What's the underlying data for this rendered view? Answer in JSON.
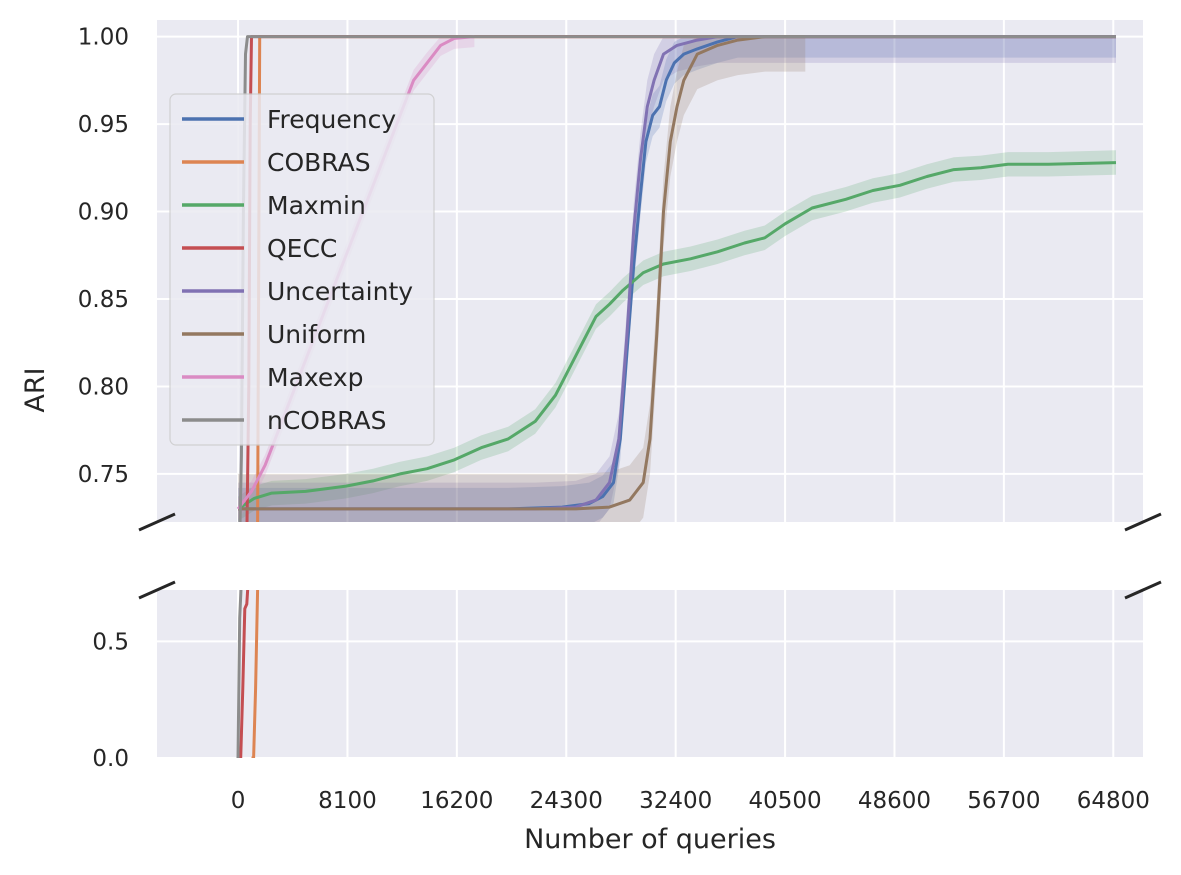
{
  "chart_data": {
    "type": "line",
    "xlabel": "Number of queries",
    "ylabel": "ARI",
    "xlim": [
      -6000,
      67000
    ],
    "x_ticks": [
      0,
      8100,
      16200,
      24300,
      32400,
      40500,
      48600,
      56700,
      64800
    ],
    "x_tick_labels": [
      "0",
      "8100",
      "16200",
      "24300",
      "32400",
      "40500",
      "48600",
      "56700",
      "64800"
    ],
    "broken_axis": true,
    "upper_ylim": [
      0.7225,
      1.0095
    ],
    "upper_y_ticks": [
      0.75,
      0.8,
      0.85,
      0.9,
      0.95,
      1.0
    ],
    "upper_y_tick_labels": [
      "0.75",
      "0.80",
      "0.85",
      "0.90",
      "0.95",
      "1.00"
    ],
    "lower_ylim": [
      0.0,
      0.72
    ],
    "lower_y_ticks": [
      0.0,
      0.5
    ],
    "lower_y_tick_labels": [
      "0.0",
      "0.5"
    ],
    "grid": true,
    "legend_position": "upper-left",
    "series": [
      {
        "name": "Frequency",
        "color": "#4c72b0",
        "x": [
          0,
          20000,
          24000,
          26000,
          27000,
          27800,
          28300,
          28800,
          29300,
          29800,
          30200,
          30700,
          31200,
          31700,
          32300,
          33000,
          34000,
          35500,
          37000,
          65000
        ],
        "y": [
          0.73,
          0.73,
          0.731,
          0.733,
          0.737,
          0.745,
          0.77,
          0.82,
          0.87,
          0.91,
          0.94,
          0.955,
          0.96,
          0.975,
          0.985,
          0.99,
          0.993,
          0.997,
          1.0,
          1.0
        ],
        "band": 0.012
      },
      {
        "name": "COBRAS",
        "color": "#dd8452",
        "x": [
          1000,
          1150,
          1300,
          1450,
          1600,
          65000
        ],
        "y": [
          0.0,
          0.0,
          0.3,
          0.72,
          1.0,
          1.0
        ],
        "band": 0
      },
      {
        "name": "Maxmin",
        "color": "#55a868",
        "x": [
          0,
          1200,
          2500,
          5000,
          8000,
          10000,
          12000,
          14000,
          16000,
          18000,
          20000,
          22000,
          23500,
          24500,
          25500,
          26500,
          27500,
          28500,
          30000,
          31500,
          33500,
          35500,
          37500,
          39000,
          40500,
          42500,
          45000,
          47000,
          49000,
          51000,
          53000,
          55000,
          57000,
          60000,
          65000
        ],
        "y": [
          0.73,
          0.736,
          0.739,
          0.74,
          0.743,
          0.746,
          0.75,
          0.753,
          0.758,
          0.765,
          0.77,
          0.78,
          0.795,
          0.81,
          0.825,
          0.84,
          0.847,
          0.855,
          0.865,
          0.87,
          0.873,
          0.877,
          0.882,
          0.885,
          0.893,
          0.902,
          0.907,
          0.912,
          0.915,
          0.92,
          0.924,
          0.925,
          0.927,
          0.927,
          0.928
        ],
        "band": 0.007
      },
      {
        "name": "QECC",
        "color": "#c44e52",
        "x": [
          0,
          200,
          350,
          500,
          650,
          800,
          900,
          1000,
          1500,
          65000
        ],
        "y": [
          0.0,
          0.0,
          0.3,
          0.64,
          0.66,
          0.8,
          0.95,
          1.0,
          1.0,
          1.0
        ],
        "band": 0
      },
      {
        "name": "Uncertainty",
        "color": "#8172b3",
        "x": [
          0,
          22000,
          25000,
          26500,
          27500,
          28200,
          28800,
          29300,
          29800,
          30300,
          30800,
          31500,
          32500,
          34000,
          35500,
          37000,
          65000
        ],
        "y": [
          0.73,
          0.73,
          0.731,
          0.735,
          0.745,
          0.77,
          0.83,
          0.89,
          0.93,
          0.96,
          0.975,
          0.99,
          0.995,
          0.998,
          1.0,
          1.0,
          1.0
        ],
        "band": 0.015
      },
      {
        "name": "Uniform",
        "color": "#937860",
        "x": [
          0,
          25000,
          27500,
          29000,
          30000,
          30500,
          31000,
          31500,
          32000,
          32500,
          33000,
          34000,
          35500,
          37000,
          39000,
          41000,
          42000
        ],
        "y": [
          0.73,
          0.73,
          0.731,
          0.735,
          0.745,
          0.77,
          0.83,
          0.9,
          0.94,
          0.96,
          0.975,
          0.99,
          0.995,
          0.998,
          1.0,
          1.0,
          1.0
        ],
        "band": 0.02
      },
      {
        "name": "Maxexp",
        "color": "#da8bc3",
        "x": [
          0,
          1000,
          2000,
          3000,
          4500,
          6000,
          7500,
          9000,
          10500,
          12000,
          13000,
          14000,
          15000,
          16000,
          17500
        ],
        "y": [
          0.73,
          0.74,
          0.755,
          0.775,
          0.805,
          0.835,
          0.865,
          0.895,
          0.925,
          0.955,
          0.975,
          0.985,
          0.995,
          0.999,
          1.0
        ],
        "band": 0.006
      },
      {
        "name": "nCOBRAS",
        "color": "#8c8c8c",
        "x": [
          0,
          120,
          250,
          400,
          550,
          700,
          65000
        ],
        "y": [
          0.0,
          0.6,
          0.76,
          0.9,
          0.99,
          1.0,
          1.0
        ],
        "band": 0
      }
    ]
  }
}
